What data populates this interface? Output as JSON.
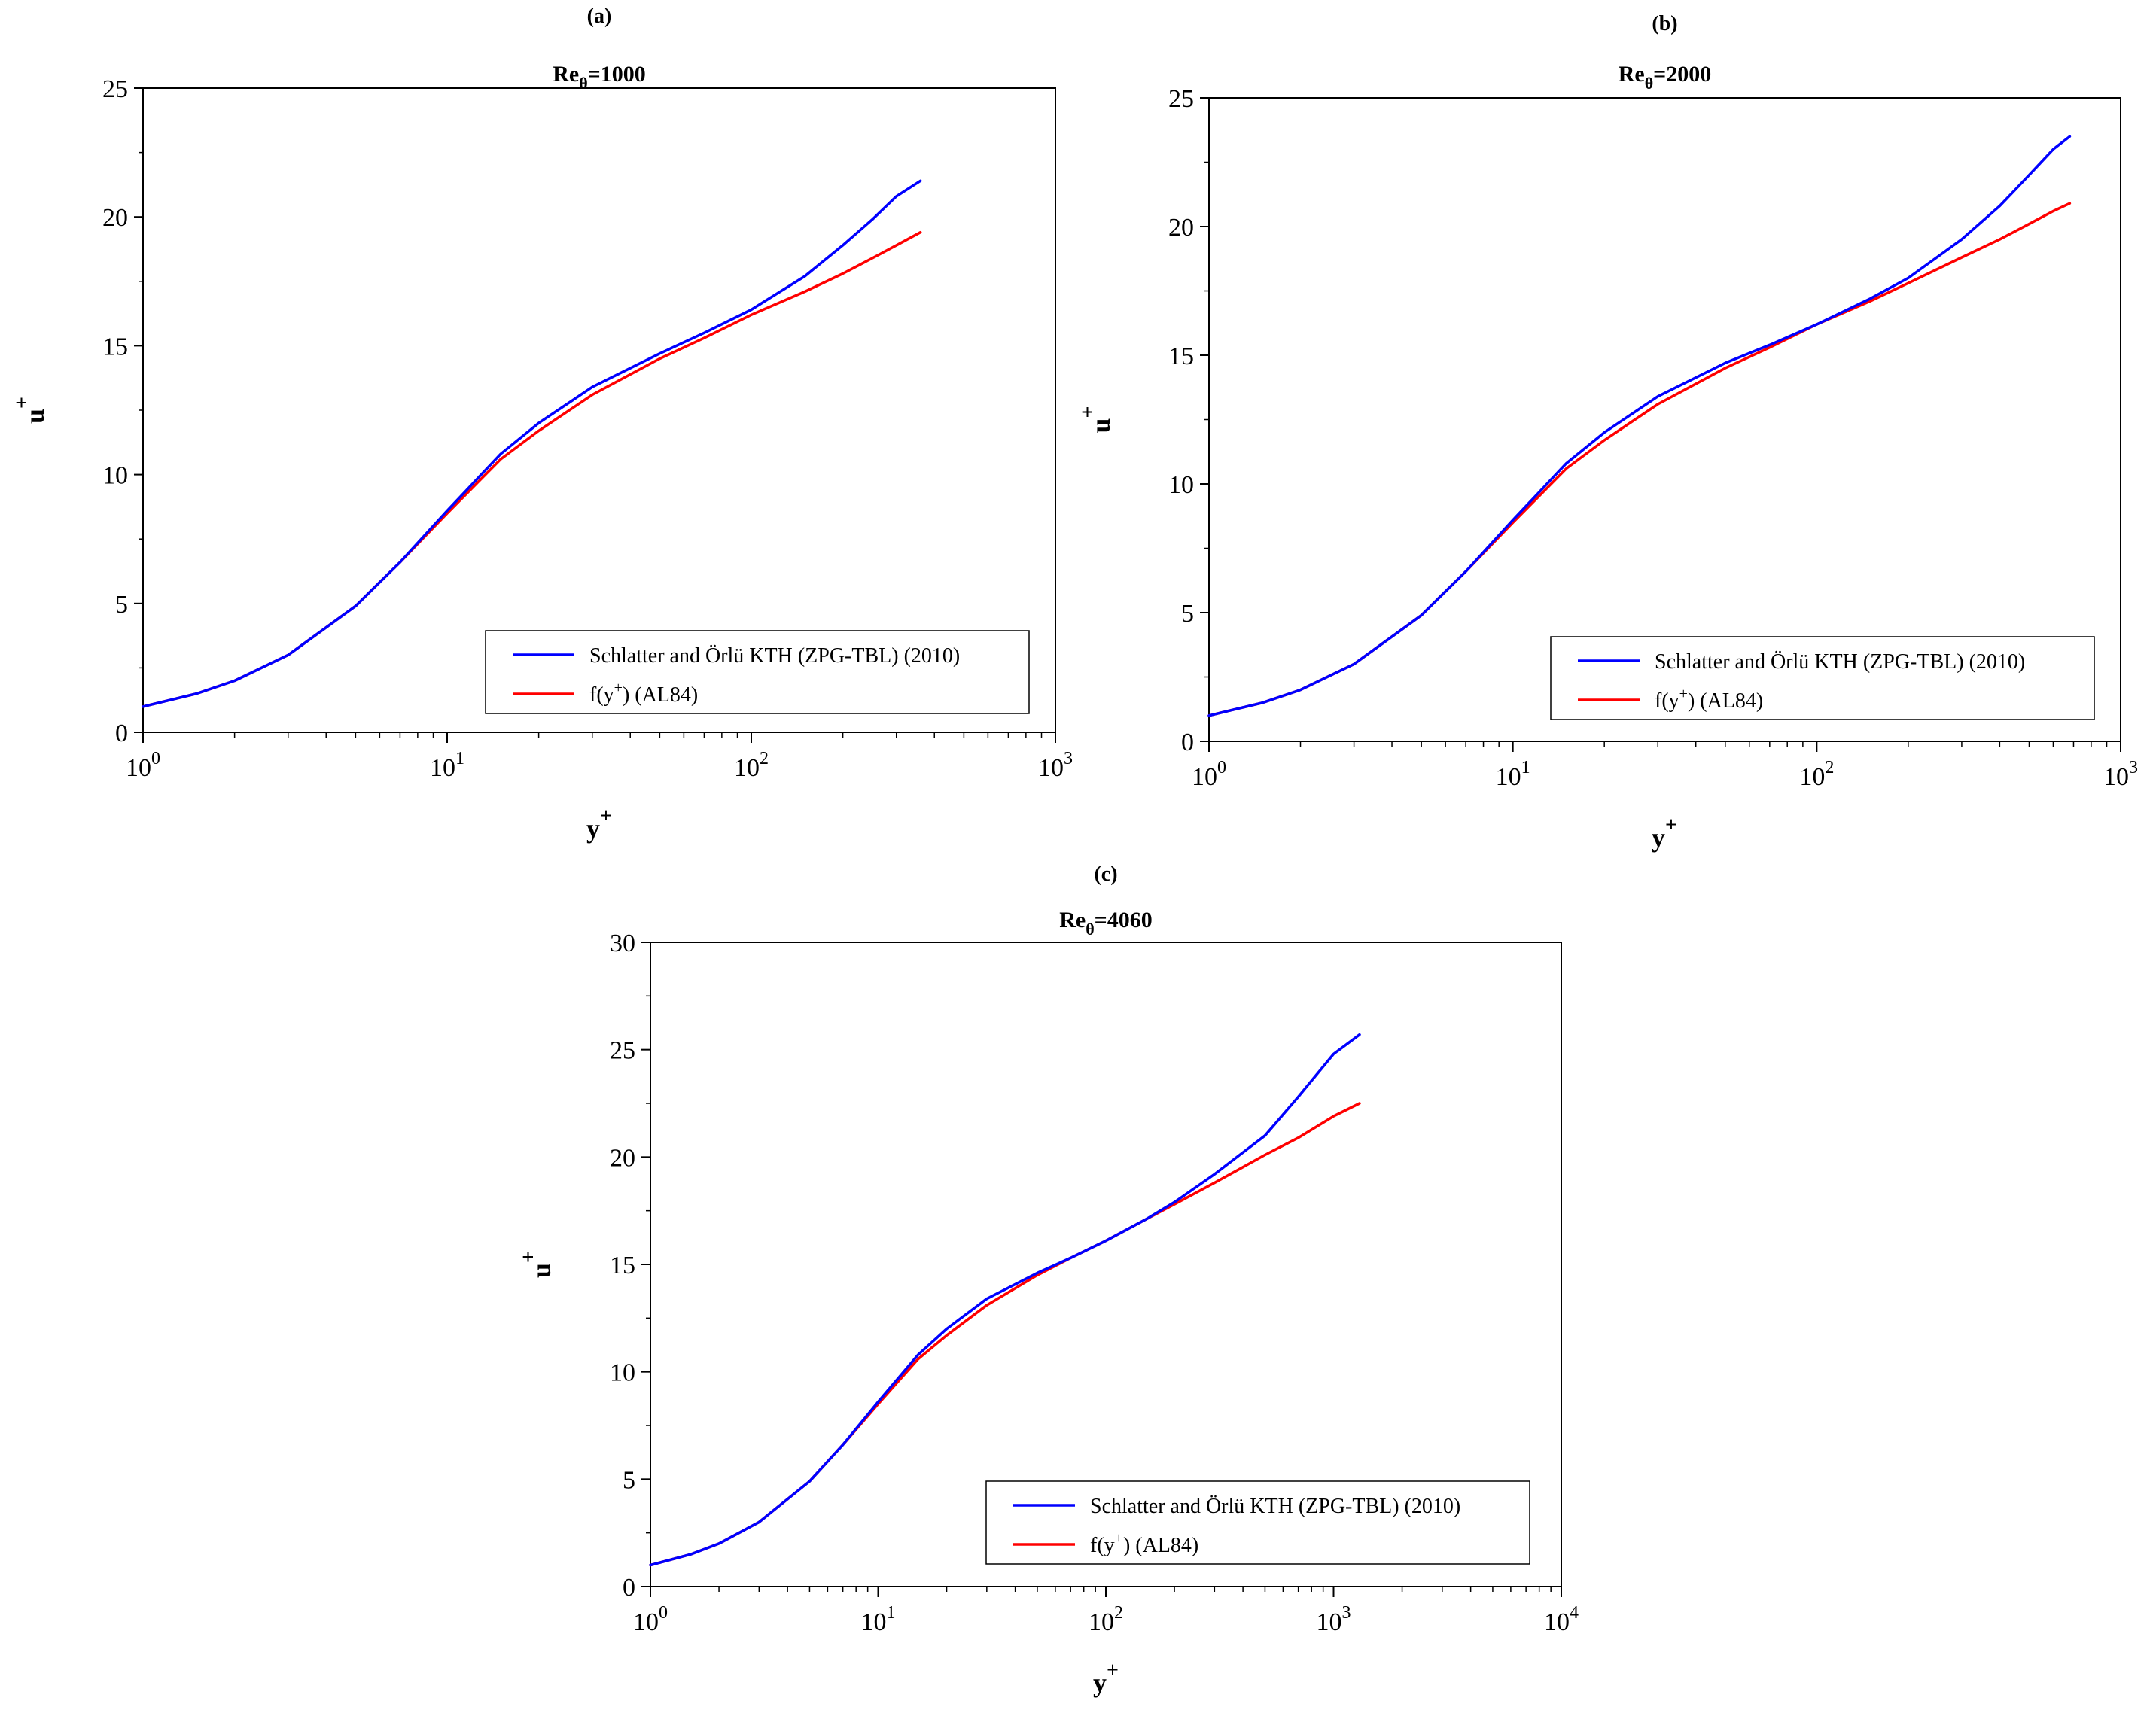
{
  "chart_data": [
    {
      "panel_label": "(a)",
      "title_main": "Re",
      "title_sub": "θ",
      "title_value": "=1000",
      "type": "line",
      "xscale": "log",
      "xlim": [
        1,
        1000
      ],
      "ylim": [
        0,
        25
      ],
      "xticks": [
        {
          "base": "10",
          "exp": "0"
        },
        {
          "base": "10",
          "exp": "1"
        },
        {
          "base": "10",
          "exp": "2"
        },
        {
          "base": "10",
          "exp": "3"
        }
      ],
      "yticks": [
        "0",
        "5",
        "10",
        "15",
        "20",
        "25"
      ],
      "xlabel_main": "y",
      "xlabel_sup": "+",
      "ylabel_main": "u",
      "ylabel_sup": "+",
      "legend_position": "bottom-right",
      "series": [
        {
          "name": "Schlatter and Örlü KTH (ZPG-TBL) (2010)",
          "color": "#0000ff",
          "x": [
            1,
            1.5,
            2,
            3,
            5,
            7,
            10,
            15,
            20,
            30,
            50,
            70,
            100,
            150,
            200,
            250,
            300,
            360
          ],
          "y": [
            1.0,
            1.5,
            2.0,
            3.0,
            4.9,
            6.6,
            8.6,
            10.8,
            12.0,
            13.4,
            14.7,
            15.5,
            16.4,
            17.7,
            18.9,
            19.9,
            20.8,
            21.4
          ]
        },
        {
          "name": "f(y⁺) (AL84)",
          "legend_base": "f(y",
          "legend_sup": "+",
          "legend_rest": ") (AL84)",
          "color": "#ff0000",
          "x": [
            1,
            1.5,
            2,
            3,
            5,
            7,
            10,
            15,
            20,
            30,
            50,
            70,
            100,
            150,
            200,
            250,
            300,
            360
          ],
          "y": [
            1.0,
            1.5,
            2.0,
            3.0,
            4.9,
            6.6,
            8.5,
            10.6,
            11.7,
            13.1,
            14.5,
            15.3,
            16.2,
            17.1,
            17.8,
            18.4,
            18.9,
            19.4
          ]
        }
      ]
    },
    {
      "panel_label": "(b)",
      "title_main": "Re",
      "title_sub": "θ",
      "title_value": "=2000",
      "type": "line",
      "xscale": "log",
      "xlim": [
        1,
        1000
      ],
      "ylim": [
        0,
        25
      ],
      "xticks": [
        {
          "base": "10",
          "exp": "0"
        },
        {
          "base": "10",
          "exp": "1"
        },
        {
          "base": "10",
          "exp": "2"
        },
        {
          "base": "10",
          "exp": "3"
        }
      ],
      "yticks": [
        "0",
        "5",
        "10",
        "15",
        "20",
        "25"
      ],
      "xlabel_main": "y",
      "xlabel_sup": "+",
      "ylabel_main": "u",
      "ylabel_sup": "+",
      "legend_position": "bottom-right",
      "series": [
        {
          "name": "Schlatter and Örlü KTH (ZPG-TBL) (2010)",
          "color": "#0000ff",
          "x": [
            1,
            1.5,
            2,
            3,
            5,
            7,
            10,
            15,
            20,
            30,
            50,
            70,
            100,
            150,
            200,
            300,
            400,
            500,
            600,
            680
          ],
          "y": [
            1.0,
            1.5,
            2.0,
            3.0,
            4.9,
            6.6,
            8.6,
            10.8,
            12.0,
            13.4,
            14.7,
            15.4,
            16.2,
            17.2,
            18.0,
            19.5,
            20.8,
            22.0,
            23.0,
            23.5
          ]
        },
        {
          "name": "f(y⁺) (AL84)",
          "legend_base": "f(y",
          "legend_sup": "+",
          "legend_rest": ") (AL84)",
          "color": "#ff0000",
          "x": [
            1,
            1.5,
            2,
            3,
            5,
            7,
            10,
            15,
            20,
            30,
            50,
            70,
            100,
            150,
            200,
            300,
            400,
            500,
            600,
            680
          ],
          "y": [
            1.0,
            1.5,
            2.0,
            3.0,
            4.9,
            6.6,
            8.5,
            10.6,
            11.7,
            13.1,
            14.5,
            15.3,
            16.2,
            17.1,
            17.8,
            18.8,
            19.5,
            20.1,
            20.6,
            20.9
          ]
        }
      ]
    },
    {
      "panel_label": "(c)",
      "title_main": "Re",
      "title_sub": "θ",
      "title_value": "=4060",
      "type": "line",
      "xscale": "log",
      "xlim": [
        1,
        10000
      ],
      "ylim": [
        0,
        30
      ],
      "xticks": [
        {
          "base": "10",
          "exp": "0"
        },
        {
          "base": "10",
          "exp": "1"
        },
        {
          "base": "10",
          "exp": "2"
        },
        {
          "base": "10",
          "exp": "3"
        },
        {
          "base": "10",
          "exp": "4"
        }
      ],
      "yticks": [
        "0",
        "5",
        "10",
        "15",
        "20",
        "25",
        "30"
      ],
      "xlabel_main": "y",
      "xlabel_sup": "+",
      "ylabel_main": "u",
      "ylabel_sup": "+",
      "legend_position": "bottom-right",
      "series": [
        {
          "name": "Schlatter and Örlü KTH (ZPG-TBL) (2010)",
          "color": "#0000ff",
          "x": [
            1,
            1.5,
            2,
            3,
            5,
            7,
            10,
            15,
            20,
            30,
            50,
            70,
            100,
            150,
            200,
            300,
            500,
            700,
            1000,
            1300
          ],
          "y": [
            1.0,
            1.5,
            2.0,
            3.0,
            4.9,
            6.6,
            8.6,
            10.8,
            12.0,
            13.4,
            14.6,
            15.3,
            16.1,
            17.1,
            17.9,
            19.2,
            21.0,
            22.8,
            24.8,
            25.7
          ]
        },
        {
          "name": "f(y⁺) (AL84)",
          "legend_base": "f(y",
          "legend_sup": "+",
          "legend_rest": ") (AL84)",
          "color": "#ff0000",
          "x": [
            1,
            1.5,
            2,
            3,
            5,
            7,
            10,
            15,
            20,
            30,
            50,
            70,
            100,
            150,
            200,
            300,
            500,
            700,
            1000,
            1300
          ],
          "y": [
            1.0,
            1.5,
            2.0,
            3.0,
            4.9,
            6.6,
            8.5,
            10.6,
            11.7,
            13.1,
            14.5,
            15.3,
            16.1,
            17.1,
            17.8,
            18.8,
            20.1,
            20.9,
            21.9,
            22.5
          ]
        }
      ]
    }
  ]
}
